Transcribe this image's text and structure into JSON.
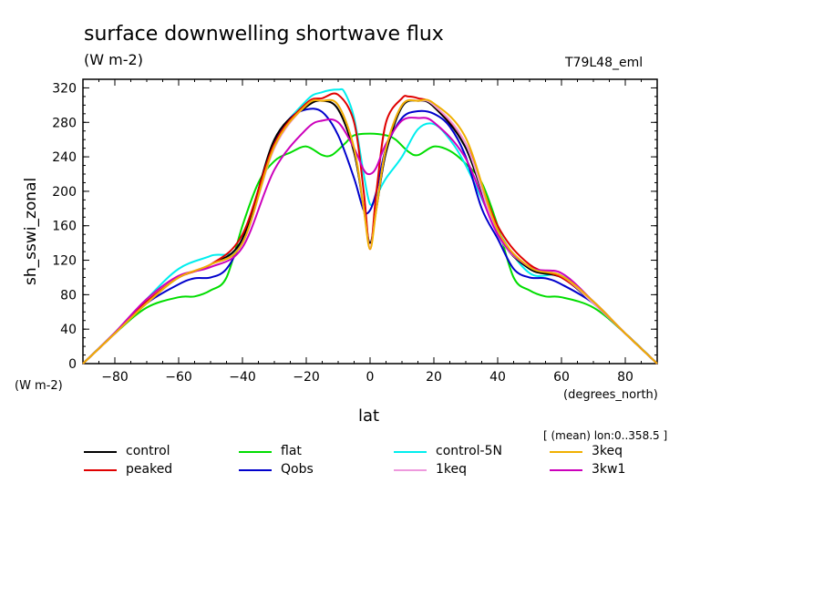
{
  "header": {
    "title": "surface downwelling shortwave flux",
    "units": "(W m-2)",
    "run_id": "T79L48_eml",
    "y_units": "(W m-2)",
    "x_units": "(degrees_north)",
    "mean_note": "[ (mean) lon:0..358.5 ]"
  },
  "chart_data": {
    "type": "line",
    "title": "surface downwelling shortwave flux",
    "xlabel": "lat",
    "ylabel": "sh_sswi_zonal",
    "xlim": [
      -90,
      90
    ],
    "ylim": [
      0,
      330
    ],
    "xticks": [
      -80,
      -60,
      -40,
      -20,
      0,
      20,
      40,
      60,
      80
    ],
    "yticks": [
      0,
      40,
      80,
      120,
      160,
      200,
      240,
      280,
      320
    ],
    "grid": false,
    "legend_position": "bottom",
    "series": [
      {
        "name": "control",
        "color": "#000000",
        "x": [
          -90,
          -80,
          -70,
          -60,
          -50,
          -40,
          -30,
          -20,
          -15,
          -10,
          -5,
          -2,
          0,
          2,
          5,
          10,
          15,
          20,
          30,
          40,
          50,
          60,
          70,
          80,
          90
        ],
        "y": [
          0,
          35,
          70,
          100,
          115,
          145,
          260,
          298,
          305,
          295,
          245,
          180,
          140,
          180,
          245,
          298,
          305,
          298,
          250,
          150,
          110,
          100,
          70,
          35,
          0
        ]
      },
      {
        "name": "peaked",
        "color": "#e00000",
        "x": [
          -90,
          -80,
          -70,
          -60,
          -50,
          -40,
          -30,
          -20,
          -15,
          -10,
          -5,
          -2,
          0,
          2,
          5,
          10,
          12,
          15,
          20,
          30,
          40,
          50,
          60,
          70,
          80,
          90
        ],
        "y": [
          0,
          35,
          72,
          100,
          115,
          150,
          255,
          302,
          308,
          312,
          280,
          200,
          133,
          200,
          280,
          308,
          310,
          308,
          300,
          255,
          160,
          115,
          100,
          72,
          35,
          0
        ]
      },
      {
        "name": "flat",
        "color": "#00dd00",
        "x": [
          -90,
          -80,
          -70,
          -60,
          -55,
          -50,
          -45,
          -40,
          -35,
          -30,
          -25,
          -20,
          -15,
          -12,
          -8,
          -5,
          0,
          5,
          8,
          12,
          15,
          20,
          25,
          30,
          35,
          40,
          45,
          50,
          55,
          60,
          70,
          80,
          90
        ],
        "y": [
          0,
          35,
          65,
          77,
          78,
          85,
          100,
          160,
          210,
          235,
          245,
          252,
          242,
          242,
          255,
          265,
          267,
          265,
          260,
          246,
          242,
          252,
          247,
          232,
          210,
          160,
          100,
          85,
          78,
          77,
          65,
          35,
          0
        ]
      },
      {
        "name": "Qobs",
        "color": "#0000cc",
        "x": [
          -90,
          -80,
          -70,
          -60,
          -55,
          -50,
          -45,
          -40,
          -35,
          -30,
          -25,
          -20,
          -15,
          -10,
          -5,
          -2,
          0,
          2,
          5,
          10,
          15,
          20,
          25,
          30,
          35,
          40,
          45,
          50,
          55,
          60,
          70,
          80,
          90
        ],
        "y": [
          0,
          35,
          70,
          92,
          99,
          100,
          110,
          145,
          200,
          258,
          285,
          295,
          292,
          265,
          215,
          178,
          178,
          200,
          250,
          285,
          293,
          290,
          275,
          240,
          180,
          145,
          110,
          100,
          99,
          92,
          70,
          35,
          0
        ]
      },
      {
        "name": "control-5N",
        "color": "#00eeee",
        "x": [
          -90,
          -80,
          -70,
          -60,
          -50,
          -40,
          -30,
          -20,
          -15,
          -10,
          -8,
          -5,
          -2,
          0,
          2,
          5,
          10,
          15,
          20,
          25,
          30,
          40,
          50,
          60,
          70,
          80,
          90
        ],
        "y": [
          0,
          36,
          75,
          110,
          125,
          140,
          255,
          305,
          315,
          318,
          315,
          285,
          220,
          185,
          195,
          215,
          240,
          272,
          278,
          260,
          230,
          155,
          105,
          102,
          72,
          35,
          0
        ]
      },
      {
        "name": "1keq",
        "color": "#ee99dd",
        "x": [
          -90,
          -80,
          -70,
          -60,
          -50,
          -40,
          -30,
          -20,
          -15,
          -10,
          -5,
          -2,
          0,
          2,
          5,
          10,
          15,
          20,
          30,
          40,
          50,
          60,
          70,
          80,
          90
        ],
        "y": [
          0,
          35,
          70,
          100,
          115,
          140,
          250,
          300,
          305,
          300,
          250,
          180,
          135,
          180,
          250,
          300,
          305,
          300,
          255,
          150,
          112,
          102,
          70,
          35,
          0
        ]
      },
      {
        "name": "3keq",
        "color": "#f0b000",
        "x": [
          -90,
          -80,
          -70,
          -60,
          -50,
          -40,
          -30,
          -20,
          -15,
          -10,
          -5,
          -2,
          0,
          2,
          5,
          10,
          15,
          20,
          30,
          40,
          50,
          60,
          70,
          80,
          90
        ],
        "y": [
          0,
          35,
          70,
          100,
          115,
          140,
          252,
          300,
          305,
          300,
          250,
          180,
          133,
          180,
          250,
          300,
          305,
          302,
          262,
          155,
          112,
          102,
          72,
          35,
          0
        ]
      },
      {
        "name": "3kw1",
        "color": "#cc00bb",
        "x": [
          -90,
          -80,
          -70,
          -60,
          -50,
          -40,
          -30,
          -20,
          -15,
          -10,
          -5,
          -2,
          0,
          2,
          5,
          10,
          15,
          20,
          30,
          40,
          50,
          60,
          70,
          80,
          90
        ],
        "y": [
          0,
          36,
          75,
          102,
          112,
          135,
          225,
          272,
          282,
          280,
          250,
          225,
          220,
          228,
          255,
          282,
          285,
          280,
          238,
          150,
          112,
          105,
          72,
          35,
          0
        ]
      }
    ]
  }
}
